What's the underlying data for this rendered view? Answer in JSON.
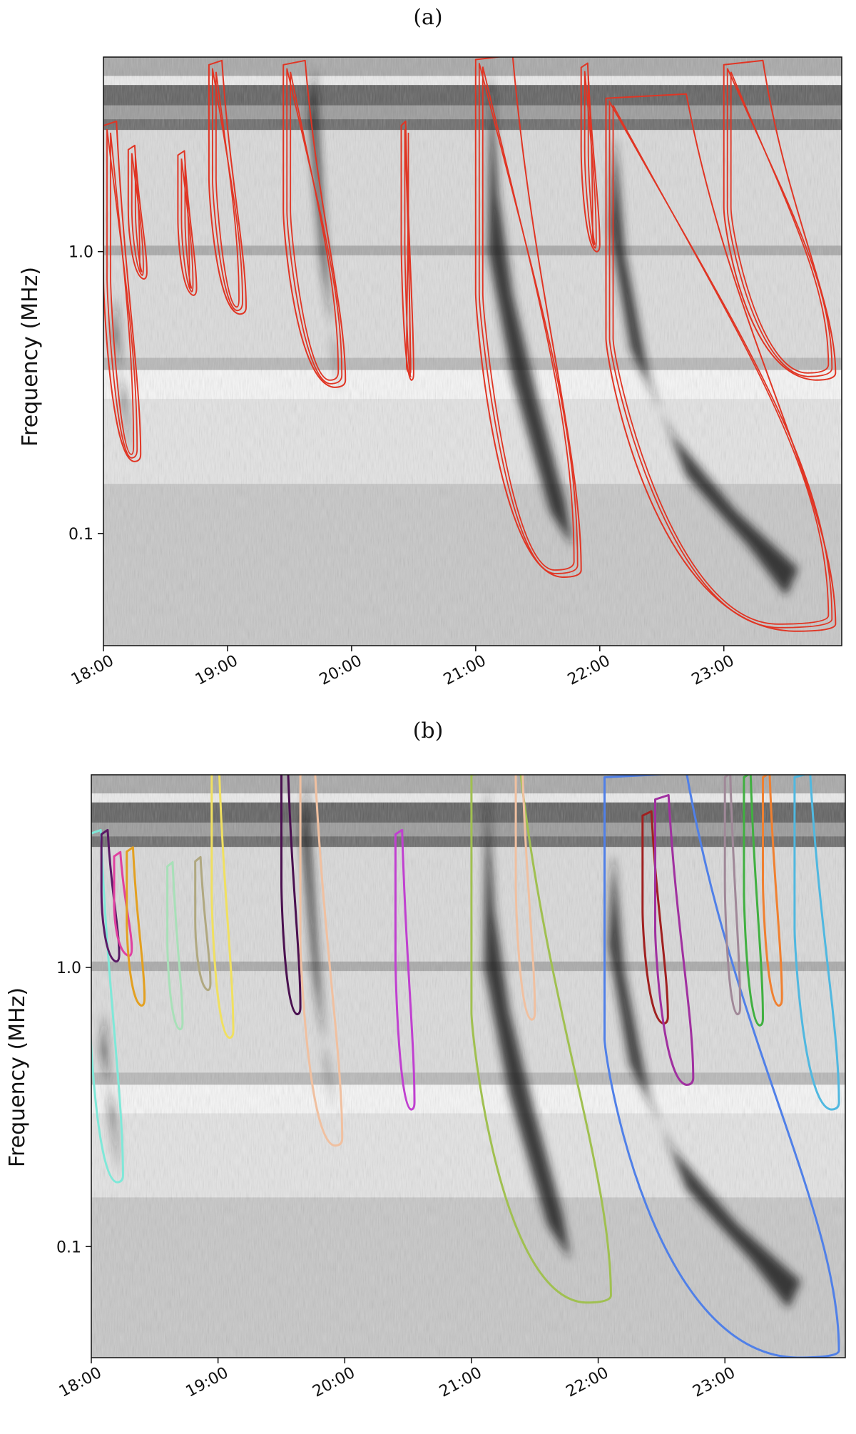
{
  "figure": {
    "panels": [
      "(a)",
      "(b)"
    ]
  },
  "chart_data": [
    {
      "type": "heatmap",
      "panel_label": "(a)",
      "ylabel": "Frequency (MHz)",
      "xlabel": "",
      "x_ticks": [
        "18:00",
        "19:00",
        "20:00",
        "21:00",
        "22:00",
        "23:00"
      ],
      "y_ticks": [
        {
          "value": 1.0,
          "label": "1.0"
        },
        {
          "value": 0.1,
          "label": "0.1"
        }
      ],
      "x_range_hours": [
        18.0,
        23.95
      ],
      "y_range_mhz": [
        0.04,
        4.9
      ],
      "y_scale": "log",
      "contour_color": "#e03524",
      "bursts": [
        {
          "t0": 18.0,
          "t1": 18.3,
          "f_top": 2.8,
          "f_bottom": 0.18
        },
        {
          "t0": 18.2,
          "t1": 18.35,
          "f_top": 2.3,
          "f_bottom": 0.8
        },
        {
          "t0": 18.6,
          "t1": 18.75,
          "f_top": 2.2,
          "f_bottom": 0.7
        },
        {
          "t0": 18.85,
          "t1": 19.15,
          "f_top": 4.6,
          "f_bottom": 0.6
        },
        {
          "t0": 19.45,
          "t1": 19.95,
          "f_top": 4.6,
          "f_bottom": 0.33
        },
        {
          "t0": 20.4,
          "t1": 20.5,
          "f_top": 2.8,
          "f_bottom": 0.35
        },
        {
          "t0": 21.0,
          "t1": 21.85,
          "f_top": 4.8,
          "f_bottom": 0.07
        },
        {
          "t0": 21.85,
          "t1": 22.0,
          "f_top": 4.5,
          "f_bottom": 1.0
        },
        {
          "t0": 22.05,
          "t1": 23.9,
          "f_top": 3.5,
          "f_bottom": 0.045
        },
        {
          "t0": 23.0,
          "t1": 23.9,
          "f_top": 4.6,
          "f_bottom": 0.35
        }
      ]
    },
    {
      "type": "heatmap",
      "panel_label": "(b)",
      "ylabel": "Frequency (MHz)",
      "xlabel": "",
      "x_ticks": [
        "18:00",
        "19:00",
        "20:00",
        "21:00",
        "22:00",
        "23:00"
      ],
      "y_ticks": [
        {
          "value": 1.0,
          "label": "1.0"
        },
        {
          "value": 0.1,
          "label": "0.1"
        }
      ],
      "x_range_hours": [
        18.0,
        23.95
      ],
      "y_range_mhz": [
        0.04,
        4.9
      ],
      "y_scale": "log",
      "bursts": [
        {
          "color": "#7fe8d8",
          "t0": 17.98,
          "t1": 18.25,
          "f_top": 3.0,
          "f_bottom": 0.17
        },
        {
          "color": "#5a1a66",
          "t0": 18.08,
          "t1": 18.22,
          "f_top": 3.0,
          "f_bottom": 1.05
        },
        {
          "color": "#e040a0",
          "t0": 18.18,
          "t1": 18.32,
          "f_top": 2.5,
          "f_bottom": 1.1
        },
        {
          "color": "#e3a020",
          "t0": 18.28,
          "t1": 18.42,
          "f_top": 2.6,
          "f_bottom": 0.73
        },
        {
          "color": "#a8e0b8",
          "t0": 18.6,
          "t1": 18.72,
          "f_top": 2.3,
          "f_bottom": 0.6
        },
        {
          "color": "#b0a880",
          "t0": 18.82,
          "t1": 18.94,
          "f_top": 2.4,
          "f_bottom": 0.83
        },
        {
          "color": "#f0e060",
          "t0": 18.95,
          "t1": 19.12,
          "f_top": 4.9,
          "f_bottom": 0.56
        },
        {
          "color": "#4a1050",
          "t0": 19.5,
          "t1": 19.65,
          "f_top": 4.9,
          "f_bottom": 0.68
        },
        {
          "color": "#f0c0a0",
          "t0": 19.65,
          "t1": 19.98,
          "f_top": 4.9,
          "f_bottom": 0.23
        },
        {
          "color": "#c040d0",
          "t0": 20.4,
          "t1": 20.55,
          "f_top": 3.0,
          "f_bottom": 0.31
        },
        {
          "color": "#a0c050",
          "t0": 21.0,
          "t1": 22.1,
          "f_top": 4.9,
          "f_bottom": 0.063
        },
        {
          "color": "#f0c0a0",
          "t0": 21.35,
          "t1": 21.5,
          "f_top": 4.9,
          "f_bottom": 0.65
        },
        {
          "color": "#5080e8",
          "t0": 22.05,
          "t1": 23.9,
          "f_top": 4.8,
          "f_bottom": 0.04
        },
        {
          "color": "#a02020",
          "t0": 22.35,
          "t1": 22.55,
          "f_top": 3.5,
          "f_bottom": 0.63
        },
        {
          "color": "#a030a0",
          "t0": 22.45,
          "t1": 22.75,
          "f_top": 4.0,
          "f_bottom": 0.38
        },
        {
          "color": "#a08898",
          "t0": 23.0,
          "t1": 23.12,
          "f_top": 4.8,
          "f_bottom": 0.68
        },
        {
          "color": "#40b040",
          "t0": 23.15,
          "t1": 23.3,
          "f_top": 4.8,
          "f_bottom": 0.62
        },
        {
          "color": "#f08030",
          "t0": 23.3,
          "t1": 23.45,
          "f_top": 4.8,
          "f_bottom": 0.73
        },
        {
          "color": "#50b8e0",
          "t0": 23.55,
          "t1": 23.9,
          "f_top": 4.8,
          "f_bottom": 0.31
        }
      ]
    }
  ]
}
